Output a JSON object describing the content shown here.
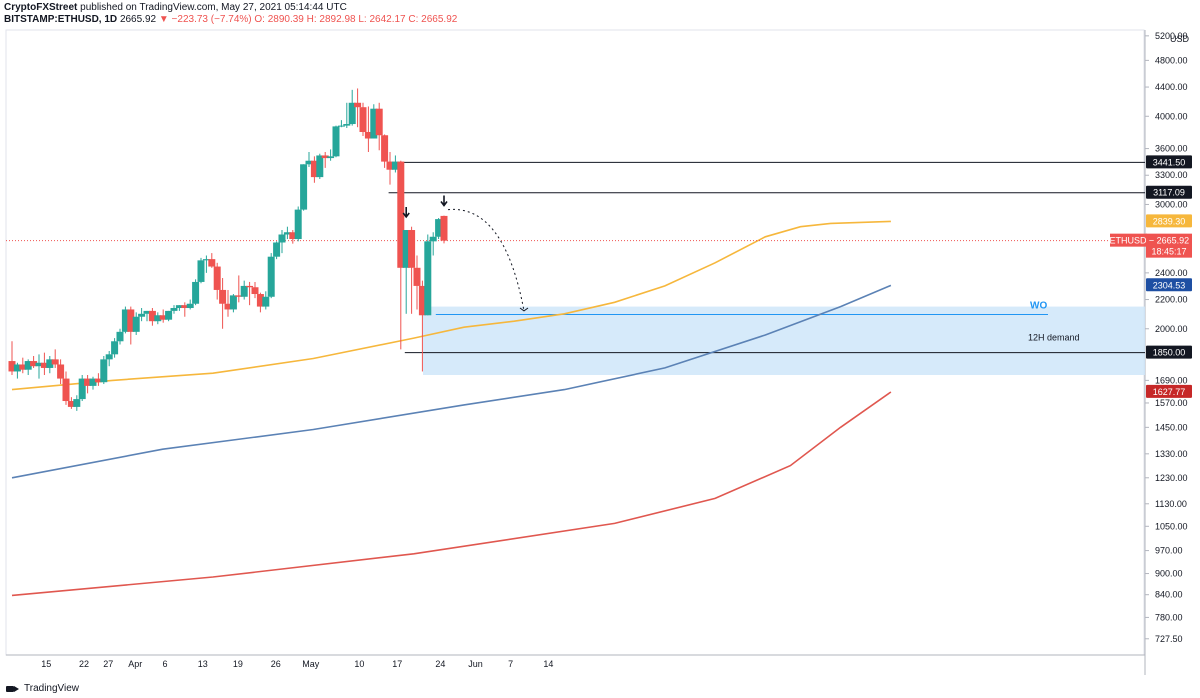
{
  "header": {
    "author": "CryptoFXStreet",
    "published": "published on TradingView.com, May 27, 2021 05:14:44 UTC",
    "symbol": "BITSTAMP:ETHUSD, 1D",
    "last": "2665.92",
    "change": "▼ −223.73 (−7.74%)",
    "ohlc": "O: 2890.39 H: 2892.98 L: 2642.17 C: 2665.92"
  },
  "footer": {
    "brand": "TradingView"
  },
  "colors": {
    "up": "#26a69a",
    "down": "#ef5350",
    "ma_yellow": "#f6b73c",
    "ma_blue": "#5b82b5",
    "ma_red": "#e0574f",
    "demand": "#cfe6f9",
    "wo_blue": "#2196f3"
  },
  "chart_data": {
    "type": "candlestick",
    "currency": "USD",
    "y_scale": "log",
    "ylim": [
      690,
      5300
    ],
    "y_ticks": [
      "727.50",
      "780.00",
      "840.00",
      "900.00",
      "970.00",
      "1050.00",
      "1130.00",
      "1230.00",
      "1330.00",
      "1450.00",
      "1570.00",
      "1690.00",
      "2000.00",
      "2200.00",
      "2400.00",
      "3000.00",
      "3300.00",
      "3600.00",
      "4000.00",
      "4400.00",
      "4800.00",
      "5200.00"
    ],
    "x_ticks": [
      "15",
      "22",
      "27",
      "Apr",
      "6",
      "13",
      "19",
      "26",
      "May",
      "10",
      "17",
      "24",
      "Jun",
      "7",
      "14"
    ],
    "candles": [
      [
        1800,
        1920,
        1720,
        1740
      ],
      [
        1740,
        1790,
        1700,
        1780
      ],
      [
        1780,
        1820,
        1730,
        1750
      ],
      [
        1750,
        1810,
        1720,
        1800
      ],
      [
        1800,
        1830,
        1760,
        1770
      ],
      [
        1770,
        1840,
        1700,
        1790
      ],
      [
        1790,
        1850,
        1720,
        1760
      ],
      [
        1760,
        1830,
        1730,
        1810
      ],
      [
        1810,
        1870,
        1760,
        1780
      ],
      [
        1780,
        1810,
        1670,
        1700
      ],
      [
        1700,
        1740,
        1560,
        1580
      ],
      [
        1580,
        1600,
        1540,
        1550
      ],
      [
        1550,
        1610,
        1530,
        1590
      ],
      [
        1590,
        1720,
        1580,
        1700
      ],
      [
        1700,
        1720,
        1620,
        1660
      ],
      [
        1660,
        1710,
        1640,
        1700
      ],
      [
        1700,
        1730,
        1660,
        1680
      ],
      [
        1680,
        1830,
        1670,
        1810
      ],
      [
        1810,
        1860,
        1770,
        1840
      ],
      [
        1840,
        1940,
        1820,
        1920
      ],
      [
        1920,
        2000,
        1900,
        1980
      ],
      [
        1980,
        2150,
        1970,
        2130
      ],
      [
        2130,
        2150,
        1900,
        1980
      ],
      [
        1980,
        2110,
        1960,
        2080
      ],
      [
        2080,
        2140,
        2050,
        2100
      ],
      [
        2100,
        2120,
        2050,
        2120
      ],
      [
        2120,
        2140,
        2020,
        2050
      ],
      [
        2050,
        2110,
        2030,
        2090
      ],
      [
        2090,
        2130,
        2040,
        2060
      ],
      [
        2060,
        2120,
        2050,
        2120
      ],
      [
        2120,
        2160,
        2100,
        2140
      ],
      [
        2140,
        2160,
        2120,
        2160
      ],
      [
        2160,
        2180,
        2080,
        2140
      ],
      [
        2140,
        2200,
        2130,
        2170
      ],
      [
        2170,
        2350,
        2160,
        2330
      ],
      [
        2330,
        2520,
        2320,
        2500
      ],
      [
        2500,
        2540,
        2400,
        2510
      ],
      [
        2510,
        2560,
        2440,
        2450
      ],
      [
        2450,
        2480,
        2200,
        2270
      ],
      [
        2270,
        2360,
        2000,
        2170
      ],
      [
        2170,
        2270,
        2080,
        2130
      ],
      [
        2130,
        2240,
        2110,
        2230
      ],
      [
        2230,
        2380,
        2180,
        2220
      ],
      [
        2220,
        2340,
        2200,
        2300
      ],
      [
        2300,
        2330,
        2160,
        2290
      ],
      [
        2290,
        2330,
        2210,
        2240
      ],
      [
        2240,
        2250,
        2110,
        2150
      ],
      [
        2150,
        2260,
        2130,
        2220
      ],
      [
        2220,
        2560,
        2210,
        2530
      ],
      [
        2530,
        2660,
        2510,
        2650
      ],
      [
        2650,
        2760,
        2560,
        2720
      ],
      [
        2720,
        2790,
        2680,
        2740
      ],
      [
        2740,
        2760,
        2640,
        2680
      ],
      [
        2680,
        2980,
        2660,
        2950
      ],
      [
        2950,
        3420,
        2940,
        3420
      ],
      [
        3420,
        3560,
        3390,
        3460
      ],
      [
        3460,
        3510,
        3220,
        3280
      ],
      [
        3280,
        3540,
        3260,
        3520
      ],
      [
        3520,
        3560,
        3380,
        3490
      ],
      [
        3490,
        3590,
        3460,
        3510
      ],
      [
        3510,
        3880,
        3500,
        3870
      ],
      [
        3870,
        3950,
        3860,
        3880
      ],
      [
        3880,
        4180,
        3850,
        3900
      ],
      [
        3900,
        4360,
        3880,
        4180
      ],
      [
        4180,
        4380,
        3860,
        4120
      ],
      [
        4120,
        4180,
        3750,
        3800
      ],
      [
        3800,
        4130,
        3560,
        3720
      ],
      [
        3720,
        4160,
        3720,
        4100
      ],
      [
        4100,
        4180,
        3580,
        3760
      ],
      [
        3760,
        3770,
        3380,
        3450
      ],
      [
        3450,
        3560,
        3200,
        3360
      ],
      [
        3360,
        3520,
        3330,
        3450
      ],
      [
        3450,
        3460,
        1870,
        2440
      ],
      [
        2440,
        2760,
        2100,
        2760
      ],
      [
        2760,
        2790,
        2100,
        2440
      ],
      [
        2440,
        2540,
        2130,
        2300
      ],
      [
        2300,
        2340,
        1740,
        2090
      ],
      [
        2090,
        2720,
        2090,
        2660
      ],
      [
        2660,
        2740,
        2540,
        2700
      ],
      [
        2700,
        2870,
        2680,
        2860
      ],
      [
        2890,
        2893,
        2642,
        2666
      ]
    ],
    "series": [
      {
        "name": "",
        "color": "#f6b73c",
        "values": [
          [
            0,
            1640
          ],
          [
            20,
            1690
          ],
          [
            40,
            1730
          ],
          [
            60,
            1815
          ],
          [
            80,
            1940
          ],
          [
            90,
            2010
          ],
          [
            100,
            2050
          ],
          [
            110,
            2100
          ],
          [
            120,
            2180
          ],
          [
            130,
            2300
          ],
          [
            140,
            2480
          ],
          [
            150,
            2700
          ],
          [
            157,
            2790
          ],
          [
            163,
            2820
          ],
          [
            175,
            2839
          ]
        ]
      },
      {
        "name": "",
        "color": "#5b82b5",
        "values": [
          [
            0,
            1230
          ],
          [
            30,
            1350
          ],
          [
            60,
            1440
          ],
          [
            90,
            1560
          ],
          [
            110,
            1640
          ],
          [
            130,
            1760
          ],
          [
            150,
            1960
          ],
          [
            165,
            2150
          ],
          [
            175,
            2304
          ]
        ]
      },
      {
        "name": "",
        "color": "#e0574f",
        "values": [
          [
            0,
            838
          ],
          [
            40,
            890
          ],
          [
            80,
            960
          ],
          [
            120,
            1060
          ],
          [
            140,
            1150
          ],
          [
            155,
            1280
          ],
          [
            165,
            1450
          ],
          [
            175,
            1627
          ]
        ]
      }
    ],
    "price_labels": [
      {
        "text": "3441.50",
        "value": 3441.5,
        "bg": "#131722"
      },
      {
        "text": "3117.09",
        "value": 3117.09,
        "bg": "#131722"
      },
      {
        "text": "2839.30",
        "value": 2839.3,
        "bg": "#f6b73c"
      },
      {
        "text": "2304.53",
        "value": 2304.53,
        "bg": "#1e4fa3"
      },
      {
        "text": "1850.00",
        "value": 1850,
        "bg": "#131722"
      },
      {
        "text": "1627.77",
        "value": 1627.77,
        "bg": "#c62828"
      }
    ],
    "last_price_label": {
      "symbol": "ETHUSD",
      "price": "2665.92",
      "time": "18:45:17",
      "value": 2665.92
    },
    "levels": [
      3441.5,
      3117.09,
      1850
    ],
    "demand_zone": {
      "label": "12H demand",
      "top": 2150,
      "bottom": 1720
    },
    "wo_label": "WO",
    "wo_level": 2095,
    "currency_label": "USD"
  }
}
